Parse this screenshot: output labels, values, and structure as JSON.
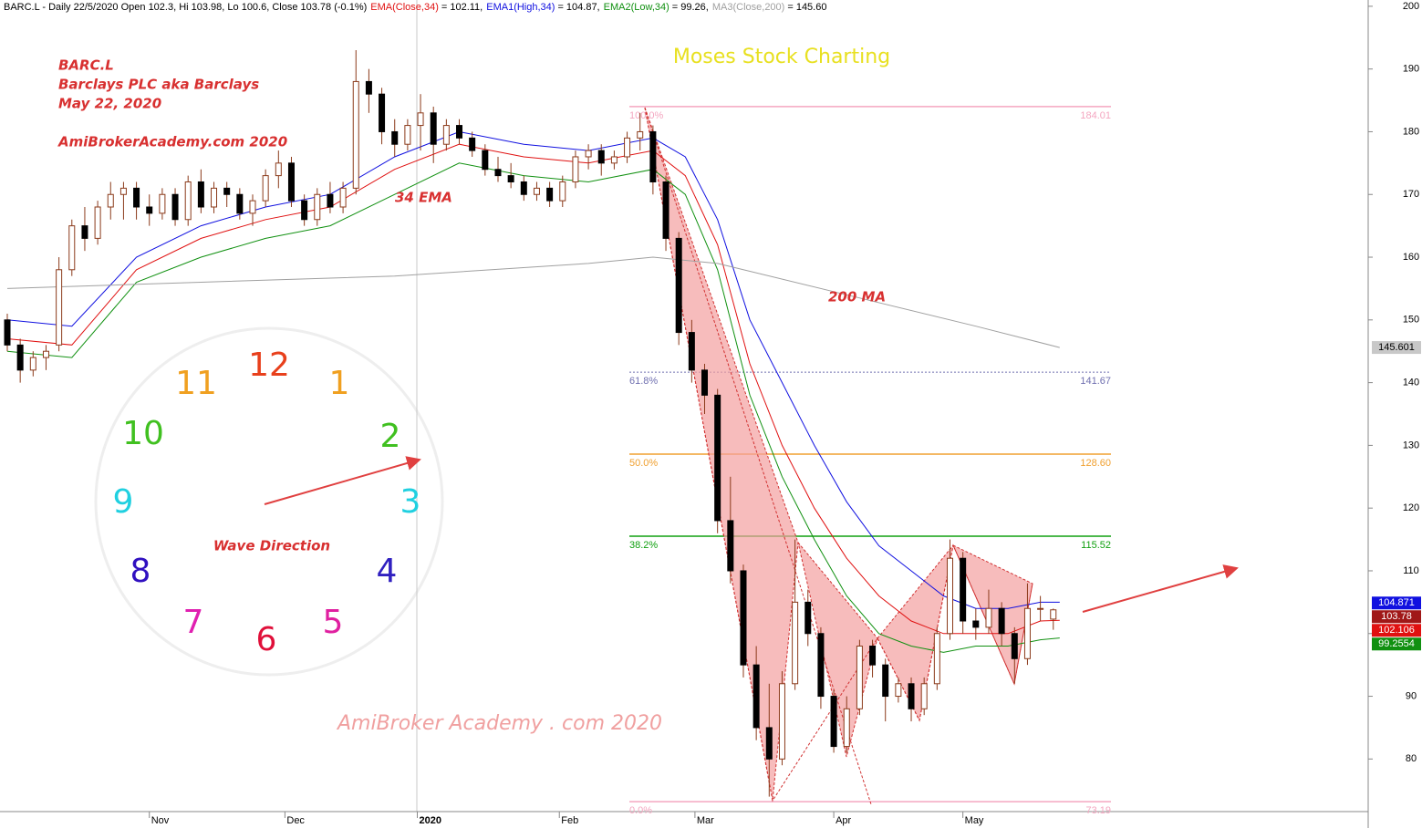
{
  "chart_data": {
    "type": "candlestick",
    "title": "BARC.L - Daily 22/5/2020 Open 102.3, Hi 103.98, Lo 100.6, Close 103.78 (-0.1%)",
    "xlim": [
      0,
      165
    ],
    "ylim": [
      69,
      201
    ],
    "xticks": [
      {
        "value": 22,
        "label": "Nov"
      },
      {
        "value": 43,
        "label": "Dec"
      },
      {
        "value": 63.5,
        "label": "2020"
      },
      {
        "value": 85.5,
        "label": "Feb"
      },
      {
        "value": 106.5,
        "label": "Mar"
      },
      {
        "value": 128,
        "label": "Apr"
      },
      {
        "value": 148,
        "label": "May"
      }
    ],
    "yticks": [
      80,
      90,
      100,
      110,
      120,
      130,
      140,
      150,
      160,
      170,
      180,
      190,
      200
    ],
    "up_color": "#ffffff",
    "down_color": "#000000",
    "wick_color": "#8b3a1a",
    "x": [
      0,
      2,
      4,
      6,
      8,
      10,
      12,
      14,
      16,
      18,
      20,
      22,
      24,
      26,
      28,
      30,
      32,
      34,
      36,
      38,
      40,
      42,
      44,
      46,
      48,
      50,
      52,
      54,
      56,
      58,
      60,
      62,
      64,
      66,
      68,
      70,
      72,
      74,
      76,
      78,
      80,
      82,
      84,
      86,
      88,
      90,
      92,
      94,
      96,
      98,
      100,
      102,
      104,
      106,
      108,
      110,
      112,
      114,
      116,
      118,
      120,
      122,
      124,
      126,
      128,
      130,
      132,
      134,
      136,
      138,
      140,
      142,
      144,
      146,
      148,
      150,
      152,
      154,
      156,
      158,
      160,
      162
    ],
    "candles": [
      [
        150,
        151,
        145,
        146
      ],
      [
        146,
        147,
        140,
        142
      ],
      [
        142,
        145,
        141,
        144
      ],
      [
        144,
        146,
        142,
        145
      ],
      [
        146,
        160,
        145,
        158
      ],
      [
        158,
        166,
        157,
        165
      ],
      [
        165,
        168,
        161,
        163
      ],
      [
        163,
        169,
        162,
        168
      ],
      [
        168,
        172,
        166,
        170
      ],
      [
        170,
        172,
        166,
        171
      ],
      [
        171,
        172,
        166,
        168
      ],
      [
        168,
        170,
        165,
        167
      ],
      [
        167,
        171,
        166,
        170
      ],
      [
        170,
        171,
        165,
        166
      ],
      [
        166,
        173,
        165,
        172
      ],
      [
        172,
        174,
        167,
        168
      ],
      [
        168,
        172,
        167,
        171
      ],
      [
        171,
        172,
        168,
        170
      ],
      [
        170,
        171,
        166,
        167
      ],
      [
        167,
        170,
        165,
        169
      ],
      [
        169,
        174,
        168,
        173
      ],
      [
        173,
        177,
        171,
        175
      ],
      [
        175,
        176,
        168,
        169
      ],
      [
        169,
        170,
        165,
        166
      ],
      [
        166,
        171,
        165,
        170
      ],
      [
        170,
        172,
        167,
        168
      ],
      [
        168,
        172,
        167,
        171
      ],
      [
        171,
        193,
        170,
        188
      ],
      [
        188,
        190,
        183,
        186
      ],
      [
        186,
        187,
        178,
        180
      ],
      [
        180,
        182,
        176,
        178
      ],
      [
        178,
        182,
        177,
        181
      ],
      [
        181,
        186,
        177,
        183
      ],
      [
        183,
        184,
        175,
        178
      ],
      [
        178,
        182,
        177,
        181
      ],
      [
        181,
        182,
        178,
        179
      ],
      [
        179,
        180,
        176,
        177
      ],
      [
        177,
        178,
        173,
        174
      ],
      [
        174,
        176,
        172,
        173
      ],
      [
        173,
        175,
        171,
        172
      ],
      [
        172,
        173,
        169,
        170
      ],
      [
        170,
        172,
        169,
        171
      ],
      [
        171,
        172,
        168,
        169
      ],
      [
        169,
        173,
        168,
        172
      ],
      [
        172,
        177,
        171,
        176
      ],
      [
        176,
        178,
        174,
        177
      ],
      [
        177,
        178,
        173,
        175
      ],
      [
        175,
        177,
        174,
        176
      ],
      [
        176,
        180,
        175,
        179
      ],
      [
        179,
        183,
        177,
        180
      ],
      [
        180,
        181,
        170,
        172
      ],
      [
        172,
        173,
        161,
        163
      ],
      [
        163,
        164,
        146,
        148
      ],
      [
        148,
        150,
        140,
        142
      ],
      [
        142,
        143,
        135,
        138
      ],
      [
        138,
        139,
        116,
        118
      ],
      [
        118,
        125,
        108,
        110
      ],
      [
        110,
        111,
        93,
        95
      ],
      [
        95,
        98,
        83,
        85
      ],
      [
        85,
        92,
        74,
        80
      ],
      [
        80,
        94,
        79,
        92
      ],
      [
        92,
        115,
        91,
        105
      ],
      [
        105,
        107,
        98,
        100
      ],
      [
        100,
        101,
        88,
        90
      ],
      [
        90,
        91,
        81,
        82
      ],
      [
        82,
        90,
        81,
        88
      ],
      [
        88,
        99,
        87,
        98
      ],
      [
        98,
        99,
        93,
        95
      ],
      [
        95,
        96,
        86,
        90
      ],
      [
        90,
        93,
        89,
        92
      ],
      [
        92,
        93,
        86,
        88
      ],
      [
        88,
        93,
        87,
        92
      ],
      [
        92,
        101,
        91,
        100
      ],
      [
        100,
        115,
        99,
        112
      ],
      [
        112,
        113,
        100,
        102
      ],
      [
        102,
        104,
        99,
        101
      ],
      [
        101,
        107,
        100,
        104
      ],
      [
        104,
        105,
        98,
        100
      ],
      [
        100,
        101,
        92,
        96
      ],
      [
        96,
        108,
        95,
        104
      ],
      [
        104,
        106,
        102,
        104
      ],
      [
        102.3,
        103.98,
        100.6,
        103.78
      ]
    ],
    "series": [
      {
        "name": "EMA(Close,34)",
        "last_label": "= 102.11,",
        "color": "#e01010",
        "x": [
          0,
          10,
          20,
          30,
          40,
          50,
          60,
          70,
          80,
          90,
          100,
          105,
          110,
          115,
          120,
          125,
          130,
          135,
          140,
          145,
          150,
          155,
          160,
          163
        ],
        "values": [
          147,
          146,
          158,
          163,
          166,
          168,
          174,
          178,
          176,
          175,
          177,
          173,
          162,
          143,
          130,
          120,
          112,
          106,
          102,
          100,
          100,
          100,
          102,
          102.1
        ]
      },
      {
        "name": "EMA1(High,34)",
        "last_label": "= 104.87,",
        "color": "#1010e0",
        "x": [
          0,
          10,
          20,
          30,
          40,
          50,
          60,
          70,
          80,
          90,
          100,
          105,
          110,
          115,
          120,
          125,
          130,
          135,
          140,
          145,
          150,
          155,
          160,
          163
        ],
        "values": [
          150,
          149,
          160,
          165,
          168,
          170,
          176,
          180,
          178,
          177,
          179,
          176,
          166,
          150,
          140,
          130,
          121,
          114,
          110,
          106,
          104,
          104,
          105,
          105
        ]
      },
      {
        "name": "EMA2(Low,34)",
        "last_label": "= 99.26,",
        "color": "#109010",
        "x": [
          0,
          10,
          20,
          30,
          40,
          50,
          60,
          70,
          80,
          90,
          100,
          105,
          110,
          115,
          120,
          125,
          130,
          135,
          140,
          145,
          150,
          155,
          160,
          163
        ],
        "values": [
          145,
          144,
          156,
          160,
          163,
          165,
          170,
          175,
          173,
          172,
          174,
          170,
          158,
          138,
          125,
          115,
          106,
          100,
          98,
          97,
          98,
          98,
          99,
          99.3
        ]
      },
      {
        "name": "MA3(Close,200)",
        "last_label": "= 145.60",
        "color": "#a0a0a0",
        "x": [
          0,
          30,
          60,
          90,
          100,
          110,
          130,
          150,
          163
        ],
        "values": [
          155,
          156,
          157,
          159,
          160,
          159,
          154,
          149,
          145.6
        ]
      }
    ],
    "price_labels": [
      {
        "value": 145.601,
        "color": "#c8c8c8",
        "text_color": "#000000"
      },
      {
        "value": 104.871,
        "color": "#1010e0",
        "text_color": "#ffffff"
      },
      {
        "value": 103.78,
        "color": "#a01818",
        "text_color": "#ffffff"
      },
      {
        "value": 102.106,
        "color": "#e01010",
        "text_color": "#ffffff"
      },
      {
        "value": 99.2554,
        "color": "#109010",
        "text_color": "#ffffff"
      }
    ],
    "fib_levels": [
      {
        "pct": "100.0%",
        "value": 184.01,
        "label": "184.01",
        "color": "#f4a6c0",
        "dashed": false
      },
      {
        "pct": "61.8%",
        "value": 141.67,
        "label": "141.67",
        "color": "#7070b0",
        "dashed": true
      },
      {
        "pct": "50.0%",
        "value": 128.6,
        "label": "128.60",
        "color": "#f0a030",
        "dashed": false
      },
      {
        "pct": "38.2%",
        "value": 115.52,
        "label": "115.52",
        "color": "#10a010",
        "dashed": false
      },
      {
        "pct": "0.0%",
        "value": 73.19,
        "label": "73.19",
        "color": "#f4a6c0",
        "dashed": false
      }
    ],
    "annotations": {
      "symbol": "BARC.L",
      "company": "Barclays PLC aka Barclays",
      "date": "May 22, 2020",
      "site": "AmiBrokerAcademy.com 2020",
      "brand": "Moses Stock Charting",
      "ema": "34 EMA",
      "ma": "200 MA",
      "watermark": "AmiBroker Academy . com 2020",
      "wave": "Wave Direction"
    },
    "clock": [
      "12",
      "1",
      "2",
      "3",
      "4",
      "5",
      "6",
      "7",
      "8",
      "9",
      "10",
      "11"
    ]
  }
}
